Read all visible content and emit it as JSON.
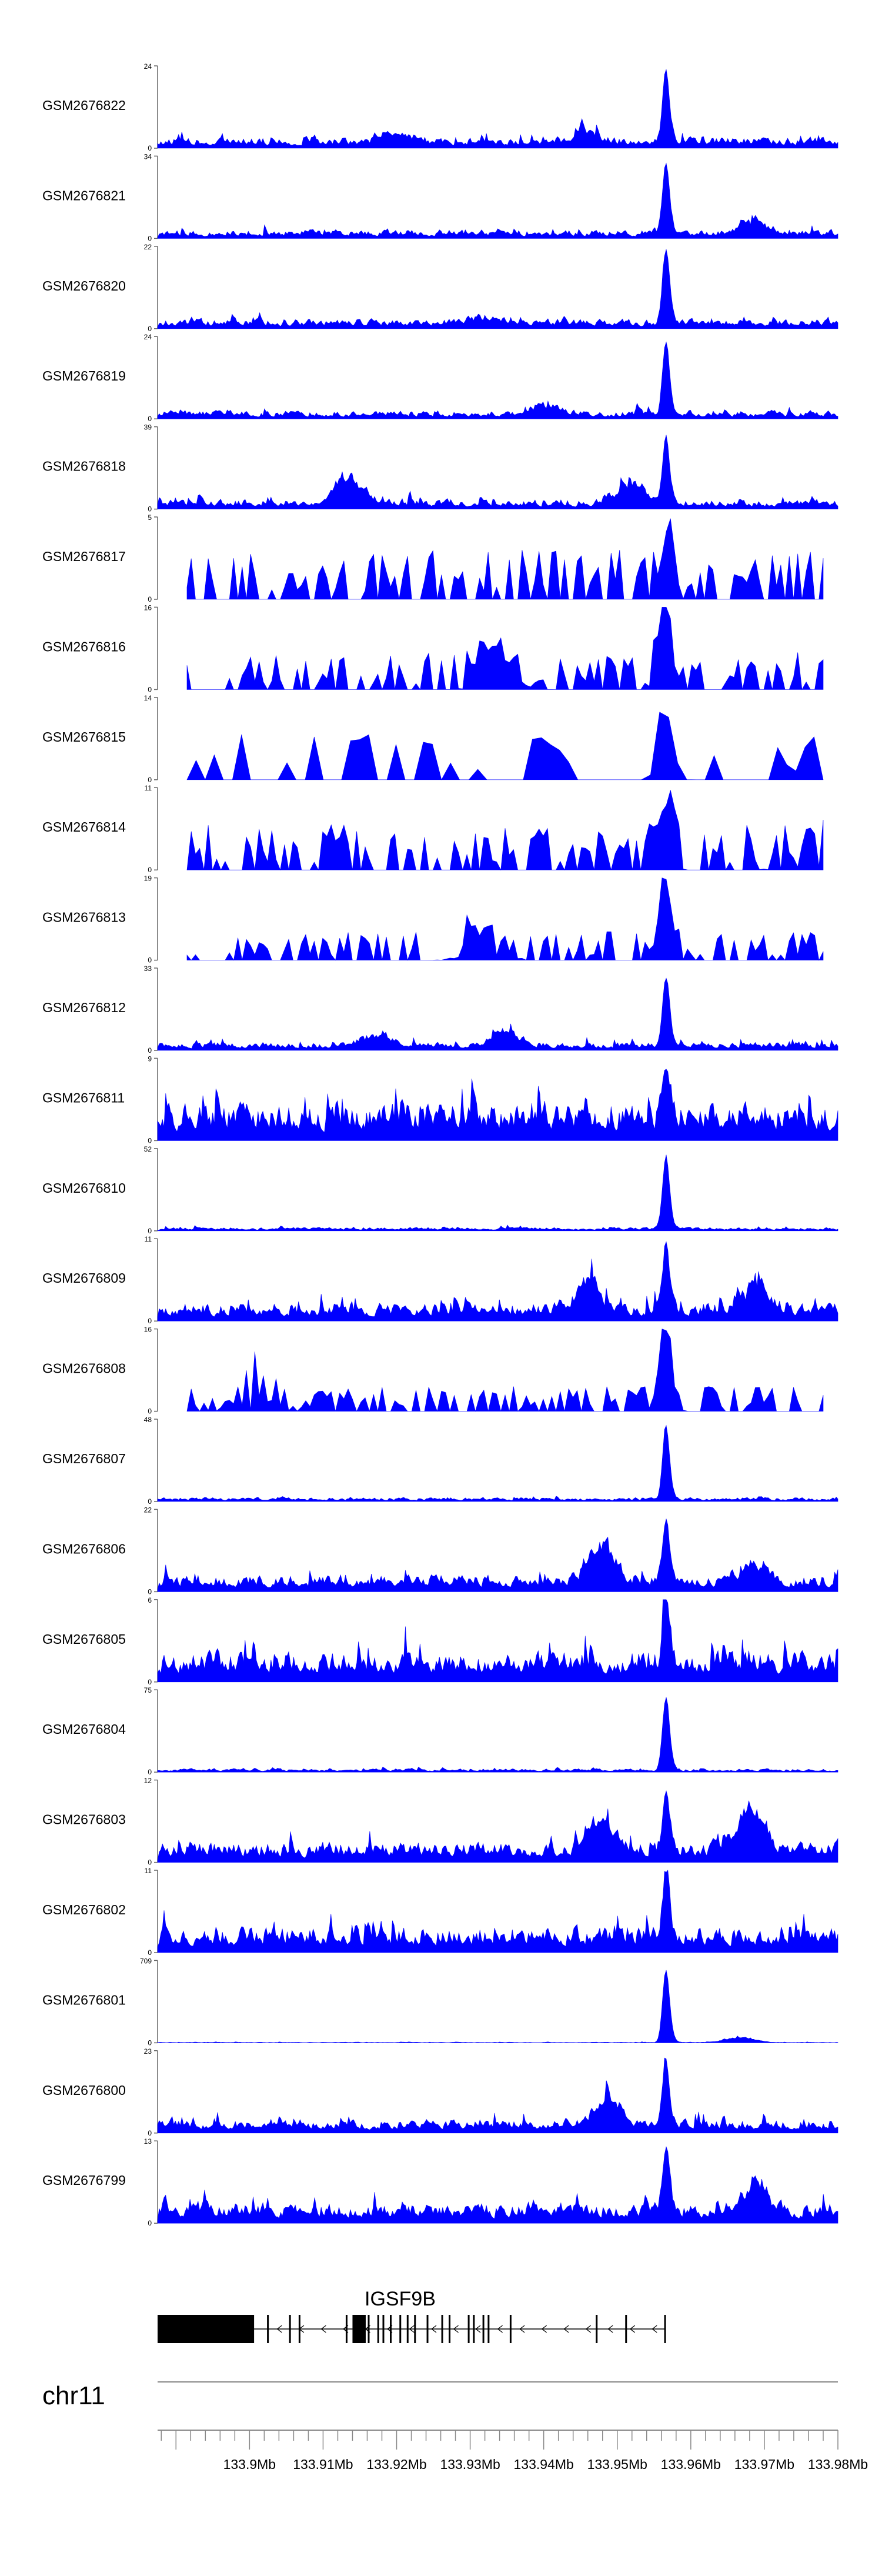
{
  "chart_data": {
    "type": "area",
    "chromosome": "chr11",
    "gene": "IGSF9B",
    "xlim": [
      133.8875,
      133.98
    ],
    "x_tick_labels": [
      "133.9Mb",
      "133.91Mb",
      "133.92Mb",
      "133.93Mb",
      "133.94Mb",
      "133.95Mb",
      "133.96Mb",
      "133.97Mb",
      "133.98Mb"
    ],
    "x_ticks": [
      133.9,
      133.91,
      133.92,
      133.93,
      133.94,
      133.95,
      133.96,
      133.97,
      133.98
    ],
    "peak_position": 133.9565,
    "color": "#0000ff",
    "tracks": [
      {
        "name": "GSM2676822",
        "ymax": "24",
        "style": "dense",
        "seed": 1,
        "base": 0.16,
        "peak": 1.0,
        "bump": [
          [
            133.92,
            0.15
          ],
          [
            133.9455,
            0.15
          ]
        ]
      },
      {
        "name": "GSM2676821",
        "ymax": "34",
        "style": "dense",
        "seed": 2,
        "base": 0.13,
        "peak": 1.0,
        "bump": [
          [
            133.9685,
            0.2
          ]
        ]
      },
      {
        "name": "GSM2676820",
        "ymax": "22",
        "style": "dense",
        "seed": 3,
        "base": 0.14,
        "peak": 1.0,
        "bump": [
          [
            133.932,
            0.12
          ]
        ]
      },
      {
        "name": "GSM2676819",
        "ymax": "24",
        "style": "dense",
        "seed": 4,
        "base": 0.12,
        "peak": 1.0,
        "bump": [
          [
            133.94,
            0.18
          ]
        ]
      },
      {
        "name": "GSM2676818",
        "ymax": "39",
        "style": "dense",
        "seed": 5,
        "base": 0.14,
        "peak": 0.95,
        "bump": [
          [
            133.9135,
            0.45
          ],
          [
            133.9515,
            0.4
          ]
        ]
      },
      {
        "name": "GSM2676817",
        "ymax": "5",
        "style": "sparse",
        "seed": 6,
        "base": 0.6,
        "peak": 0.6,
        "bump": []
      },
      {
        "name": "GSM2676816",
        "ymax": "16",
        "style": "sparse",
        "seed": 7,
        "base": 0.45,
        "peak": 0.95,
        "bump": [
          [
            133.9335,
            0.5
          ]
        ]
      },
      {
        "name": "GSM2676815",
        "ymax": "14",
        "style": "verysparse",
        "seed": 8,
        "base": 0.55,
        "peak": 0.9,
        "bump": []
      },
      {
        "name": "GSM2676814",
        "ymax": "11",
        "style": "sparse",
        "seed": 9,
        "base": 0.55,
        "peak": 0.8,
        "bump": [
          [
            133.975,
            0.4
          ]
        ]
      },
      {
        "name": "GSM2676813",
        "ymax": "19",
        "style": "sparse",
        "seed": 10,
        "base": 0.35,
        "peak": 1.0,
        "bump": [
          [
            133.932,
            0.45
          ]
        ]
      },
      {
        "name": "GSM2676812",
        "ymax": "33",
        "style": "dense",
        "seed": 11,
        "base": 0.12,
        "peak": 0.95,
        "bump": [
          [
            133.9175,
            0.2
          ],
          [
            133.9345,
            0.25
          ]
        ]
      },
      {
        "name": "GSM2676811",
        "ymax": "9",
        "style": "dense",
        "seed": 12,
        "base": 0.55,
        "peak": 0.85,
        "bump": []
      },
      {
        "name": "GSM2676810",
        "ymax": "52",
        "style": "dense",
        "seed": 13,
        "base": 0.05,
        "peak": 1.0,
        "bump": []
      },
      {
        "name": "GSM2676809",
        "ymax": "11",
        "style": "dense",
        "seed": 14,
        "base": 0.28,
        "peak": 0.9,
        "bump": [
          [
            133.946,
            0.4
          ],
          [
            133.9685,
            0.4
          ]
        ]
      },
      {
        "name": "GSM2676808",
        "ymax": "16",
        "style": "sparse",
        "seed": 15,
        "base": 0.3,
        "peak": 1.0,
        "bump": [
          [
            133.9,
            0.55
          ]
        ]
      },
      {
        "name": "GSM2676807",
        "ymax": "48",
        "style": "dense",
        "seed": 16,
        "base": 0.06,
        "peak": 1.0,
        "bump": []
      },
      {
        "name": "GSM2676806",
        "ymax": "22",
        "style": "dense",
        "seed": 17,
        "base": 0.25,
        "peak": 0.85,
        "bump": [
          [
            133.9475,
            0.65
          ],
          [
            133.9685,
            0.35
          ]
        ]
      },
      {
        "name": "GSM2676805",
        "ymax": "6",
        "style": "dense",
        "seed": 18,
        "base": 0.45,
        "peak": 1.0,
        "bump": []
      },
      {
        "name": "GSM2676804",
        "ymax": "75",
        "style": "dense",
        "seed": 19,
        "base": 0.05,
        "peak": 1.0,
        "bump": []
      },
      {
        "name": "GSM2676803",
        "ymax": "12",
        "style": "dense",
        "seed": 20,
        "base": 0.3,
        "peak": 0.85,
        "bump": [
          [
            133.9475,
            0.5
          ],
          [
            133.968,
            0.6
          ]
        ]
      },
      {
        "name": "GSM2676802",
        "ymax": "11",
        "style": "dense",
        "seed": 21,
        "base": 0.38,
        "peak": 0.9,
        "bump": []
      },
      {
        "name": "GSM2676801",
        "ymax": "709",
        "style": "dense",
        "seed": 22,
        "base": 0.01,
        "peak": 1.0,
        "bump": [
          [
            133.9665,
            0.1
          ]
        ]
      },
      {
        "name": "GSM2676800",
        "ymax": "23",
        "style": "dense",
        "seed": 23,
        "base": 0.2,
        "peak": 0.9,
        "bump": [
          [
            133.9485,
            0.5
          ]
        ]
      },
      {
        "name": "GSM2676799",
        "ymax": "13",
        "style": "dense",
        "seed": 24,
        "base": 0.3,
        "peak": 0.95,
        "bump": [
          [
            133.9685,
            0.5
          ]
        ]
      }
    ]
  }
}
